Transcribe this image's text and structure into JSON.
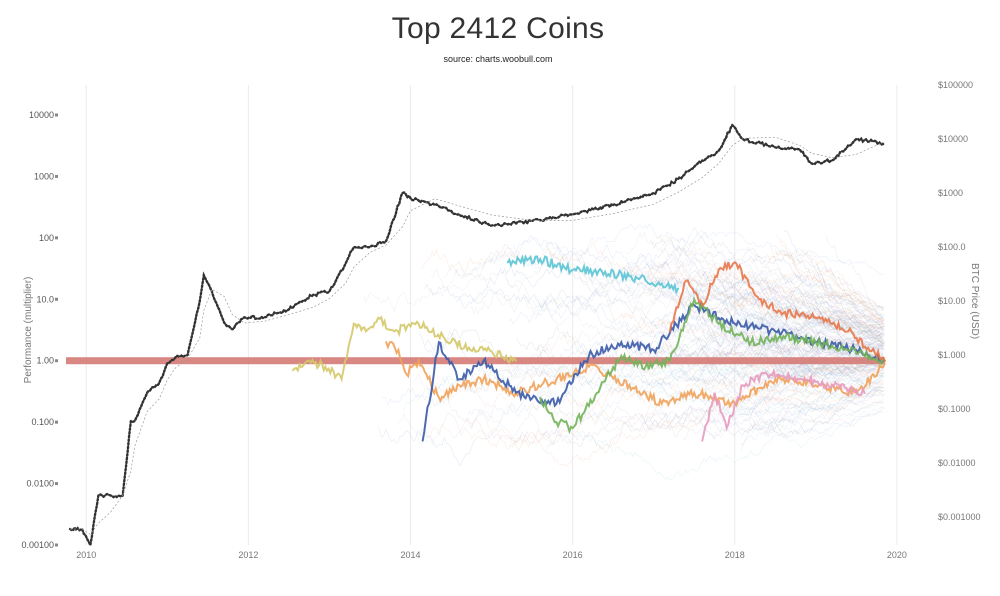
{
  "chart_data": {
    "type": "line",
    "title": "Top 2412 Coins",
    "subtitle": "source: charts.woobull.com",
    "ylabel_left": "Performance (multiplier)",
    "ylabel_right": "BTC Price (USD)",
    "x_ticks": [
      "2010",
      "2012",
      "2014",
      "2016",
      "2018",
      "2020"
    ],
    "xlim": [
      2009.75,
      2020.1
    ],
    "y_left_scale": "log",
    "y_left_ticks": [
      "0.00100",
      "0.0100",
      "0.100",
      "1.00",
      "10.0",
      "100",
      "1000",
      "10000"
    ],
    "ylim_left": [
      0.001,
      10000
    ],
    "y_right_scale": "log",
    "y_right_ticks": [
      "$0.001000",
      "$0.01000",
      "$0.1000",
      "$1.000",
      "$10.00",
      "$100.0",
      "$1000",
      "$10000",
      "$100000"
    ],
    "ylim_right": [
      0.0003,
      100000
    ],
    "grid": "vertical",
    "reference_line": {
      "y": 1,
      "color": "#d47a75"
    },
    "series": [
      {
        "color": "#333333",
        "style": "dotted",
        "axis": "right",
        "x": [
          2009.8,
          2009.95,
          2010.05,
          2010.15,
          2010.3,
          2010.45,
          2010.55,
          2010.6,
          2010.75,
          2010.9,
          2011.0,
          2011.1,
          2011.25,
          2011.4,
          2011.45,
          2011.55,
          2011.7,
          2011.8,
          2011.95,
          2012.2,
          2012.5,
          2012.8,
          2013.0,
          2013.2,
          2013.3,
          2013.5,
          2013.7,
          2013.9,
          2014.0,
          2014.3,
          2014.6,
          2015.0,
          2015.5,
          2016.0,
          2016.5,
          2017.0,
          2017.3,
          2017.6,
          2017.8,
          2017.97,
          2018.1,
          2018.5,
          2018.8,
          2018.95,
          2019.2,
          2019.5,
          2019.7,
          2019.85
        ],
        "values": [
          0.0006,
          0.0006,
          0.0003,
          0.0025,
          0.0025,
          0.0025,
          0.06,
          0.06,
          0.2,
          0.3,
          0.7,
          0.9,
          1.0,
          10,
          30,
          15,
          4,
          3,
          5,
          5,
          7,
          13,
          15,
          50,
          100,
          100,
          130,
          1000,
          800,
          600,
          400,
          250,
          300,
          400,
          600,
          1000,
          1800,
          4000,
          6000,
          18000,
          10000,
          7000,
          6500,
          3500,
          4000,
          10000,
          9000,
          8000
        ]
      },
      {
        "color": "#5bc4d4",
        "axis": "left",
        "x": [
          2015.2,
          2015.6,
          2016.0,
          2016.4,
          2016.8,
          2017.1,
          2017.3
        ],
        "values": [
          40,
          45,
          30,
          28,
          22,
          18,
          15
        ]
      },
      {
        "color": "#d4c96a",
        "axis": "left",
        "x": [
          2012.55,
          2012.75,
          2012.95,
          2013.15,
          2013.3,
          2013.45,
          2013.6,
          2013.8,
          2014.1,
          2014.5,
          2014.9,
          2015.3
        ],
        "values": [
          0.7,
          1.0,
          0.8,
          0.5,
          4,
          3,
          5,
          3,
          4,
          2,
          1.5,
          1.0
        ]
      },
      {
        "color": "#f0a25a",
        "axis": "left",
        "x": [
          2013.7,
          2013.85,
          2013.95,
          2014.1,
          2014.35,
          2014.6,
          2014.9,
          2015.3,
          2015.8,
          2016.2,
          2016.7,
          2017.1,
          2017.5,
          2018.0,
          2018.5,
          2019.0,
          2019.5,
          2019.85
        ],
        "values": [
          2,
          1.5,
          0.6,
          1.0,
          0.25,
          0.4,
          0.5,
          0.3,
          0.5,
          0.8,
          0.4,
          0.2,
          0.3,
          0.2,
          0.5,
          0.4,
          0.3,
          0.9
        ]
      },
      {
        "color": "#3b5ba8",
        "axis": "left",
        "x": [
          2014.15,
          2014.35,
          2014.6,
          2014.9,
          2015.3,
          2015.8,
          2016.2,
          2016.6,
          2017.0,
          2017.5,
          2018.0,
          2018.5,
          2019.0,
          2019.5,
          2019.85
        ],
        "values": [
          0.05,
          2,
          0.5,
          1.0,
          0.3,
          0.2,
          1.2,
          2,
          1.5,
          8,
          4,
          3,
          2,
          1.5,
          1.0
        ]
      },
      {
        "color": "#72b35a",
        "axis": "left",
        "x": [
          2015.6,
          2015.8,
          2016.0,
          2016.3,
          2016.6,
          2016.9,
          2017.2,
          2017.5,
          2017.8,
          2018.2,
          2018.6,
          2019.0,
          2019.4,
          2019.85
        ],
        "values": [
          0.25,
          0.1,
          0.08,
          0.3,
          1.2,
          0.8,
          1.0,
          10,
          4,
          2,
          2.5,
          2,
          1.5,
          1.0
        ]
      },
      {
        "color": "#e8774a",
        "axis": "left",
        "x": [
          2017.2,
          2017.4,
          2017.6,
          2017.8,
          2018.0,
          2018.3,
          2018.6,
          2019.0,
          2019.4,
          2019.85
        ],
        "values": [
          3,
          20,
          8,
          30,
          40,
          10,
          6,
          5,
          3,
          1.0
        ]
      },
      {
        "color": "#e79ac0",
        "axis": "left",
        "x": [
          2017.6,
          2017.75,
          2017.9,
          2018.1,
          2018.4,
          2018.8,
          2019.2,
          2019.6
        ],
        "values": [
          0.05,
          0.3,
          0.08,
          0.4,
          0.6,
          0.5,
          0.4,
          0.3
        ]
      }
    ]
  }
}
